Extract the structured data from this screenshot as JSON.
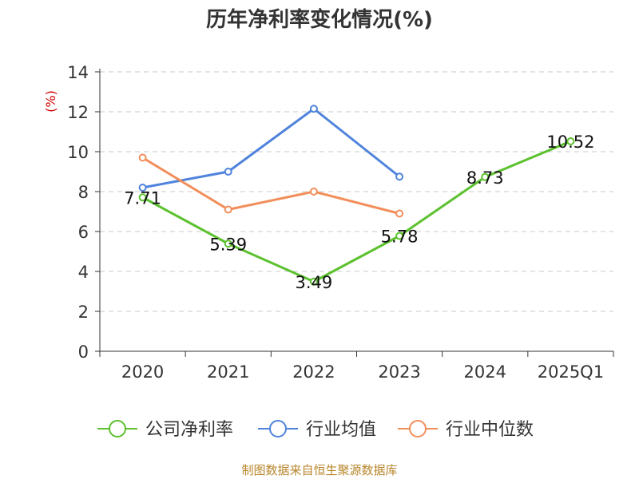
{
  "chart_data": {
    "type": "line",
    "title": "历年净利率变化情况(%)",
    "ylabel": "(%)",
    "xlabel": "",
    "categories": [
      "2020",
      "2021",
      "2022",
      "2023",
      "2024",
      "2025Q1"
    ],
    "ylim": [
      0,
      14
    ],
    "yticks": [
      "0",
      "2",
      "4",
      "6",
      "8",
      "10",
      "12",
      "14"
    ],
    "grid": true,
    "legend_position": "bottom",
    "series": [
      {
        "name": "公司净利率",
        "color": "#5cc12e",
        "values": [
          7.71,
          5.39,
          3.49,
          5.78,
          8.73,
          10.52
        ],
        "labels": [
          "7.71",
          "5.39",
          "3.49",
          "5.78",
          "8.73",
          "10.52"
        ]
      },
      {
        "name": "行业均值",
        "color": "#4f83dc",
        "values": [
          8.2,
          9.0,
          12.15,
          8.75,
          null,
          null
        ]
      },
      {
        "name": "行业中位数",
        "color": "#f28e5a",
        "values": [
          9.7,
          7.1,
          8.0,
          6.9,
          null,
          null
        ]
      }
    ]
  },
  "source": "制图数据来自恒生聚源数据库"
}
